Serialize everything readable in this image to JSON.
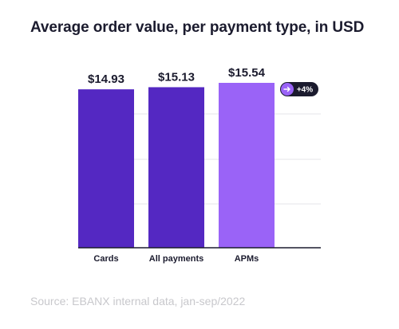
{
  "title": "Average order value, per payment type, in USD",
  "source": "Source: EBANX internal data, jan-sep/2022",
  "colors": {
    "bar_dark": "#5428c2",
    "bar_highlight": "#9a63f7",
    "text": "#1b1b2e",
    "grid": "#e6e6ea",
    "badge_bg": "#1b1b2e",
    "badge_icon": "#9a63f7"
  },
  "badge": {
    "icon": "arrow-right-icon",
    "label": "+4%"
  },
  "chart_data": {
    "type": "bar",
    "categories": [
      "Cards",
      "All payments",
      "APMs"
    ],
    "values": [
      14.93,
      15.13,
      15.54
    ],
    "value_labels": [
      "$14.93",
      "$15.13",
      "$15.54"
    ],
    "highlight_index": 2,
    "title": "Average order value, per payment type, in USD",
    "xlabel": "",
    "ylabel": "",
    "grid": true
  }
}
